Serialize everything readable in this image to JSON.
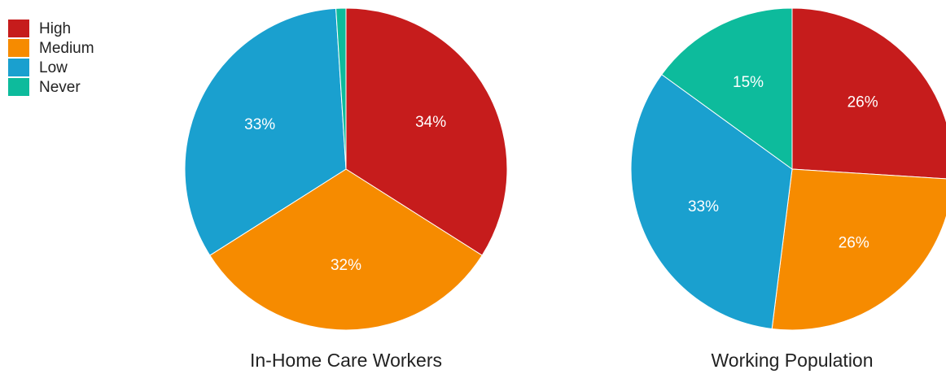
{
  "chart_data": [
    {
      "type": "pie",
      "title": "In-Home Care Workers",
      "categories": [
        "High",
        "Medium",
        "Low",
        "Never"
      ],
      "values": [
        34,
        32,
        33,
        1
      ],
      "value_labels": [
        "34%",
        "32%",
        "33%",
        null
      ],
      "colors": [
        "#c61c1c",
        "#f68b00",
        "#1aa0cf",
        "#0dbb9c"
      ],
      "legend": "top-left"
    },
    {
      "type": "pie",
      "title": "Working Population",
      "categories": [
        "High",
        "Medium",
        "Low",
        "Never"
      ],
      "values": [
        26,
        26,
        33,
        15
      ],
      "value_labels": [
        "26%",
        "26%",
        "33%",
        "15%"
      ],
      "colors": [
        "#c61c1c",
        "#f68b00",
        "#1aa0cf",
        "#0dbb9c"
      ]
    }
  ]
}
